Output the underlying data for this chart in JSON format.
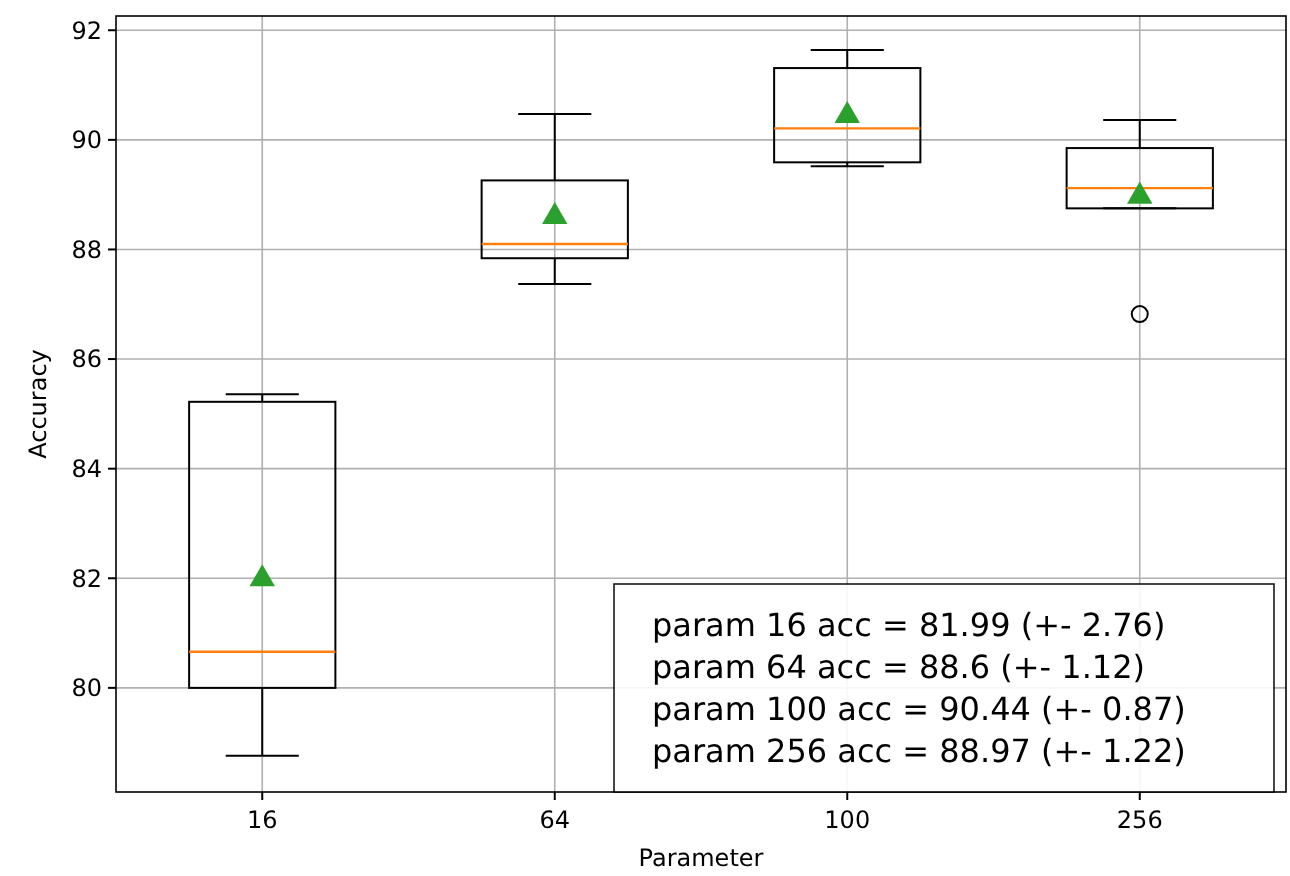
{
  "chart_data": {
    "type": "box",
    "xlabel": "Parameter",
    "ylabel": "Accuracy",
    "categories": [
      "16",
      "64",
      "100",
      "256"
    ],
    "boxes": [
      {
        "low": 78.76,
        "q1": 80.0,
        "median": 80.66,
        "q3": 85.22,
        "high": 85.36,
        "mean": 81.99
      },
      {
        "low": 87.37,
        "q1": 87.84,
        "median": 88.1,
        "q3": 89.26,
        "high": 90.47,
        "mean": 88.6
      },
      {
        "low": 89.52,
        "q1": 89.59,
        "median": 90.21,
        "q3": 91.31,
        "high": 91.64,
        "mean": 90.44
      },
      {
        "low": 88.75,
        "q1": 88.75,
        "median": 89.12,
        "q3": 89.85,
        "high": 90.36,
        "mean": 88.97,
        "outliers": [
          86.82
        ]
      }
    ],
    "ylim": [
      78.1,
      92.26
    ],
    "yticks": [
      80,
      82,
      84,
      86,
      88,
      90,
      92
    ],
    "grid": true,
    "marker": "triangle",
    "annotations": [
      "param 16 acc = 81.99 (+- 2.76)",
      "param 64 acc = 88.6 (+- 1.12)",
      "param 100 acc = 90.44 (+- 0.87)",
      "param 256 acc = 88.97 (+- 1.22)"
    ]
  }
}
